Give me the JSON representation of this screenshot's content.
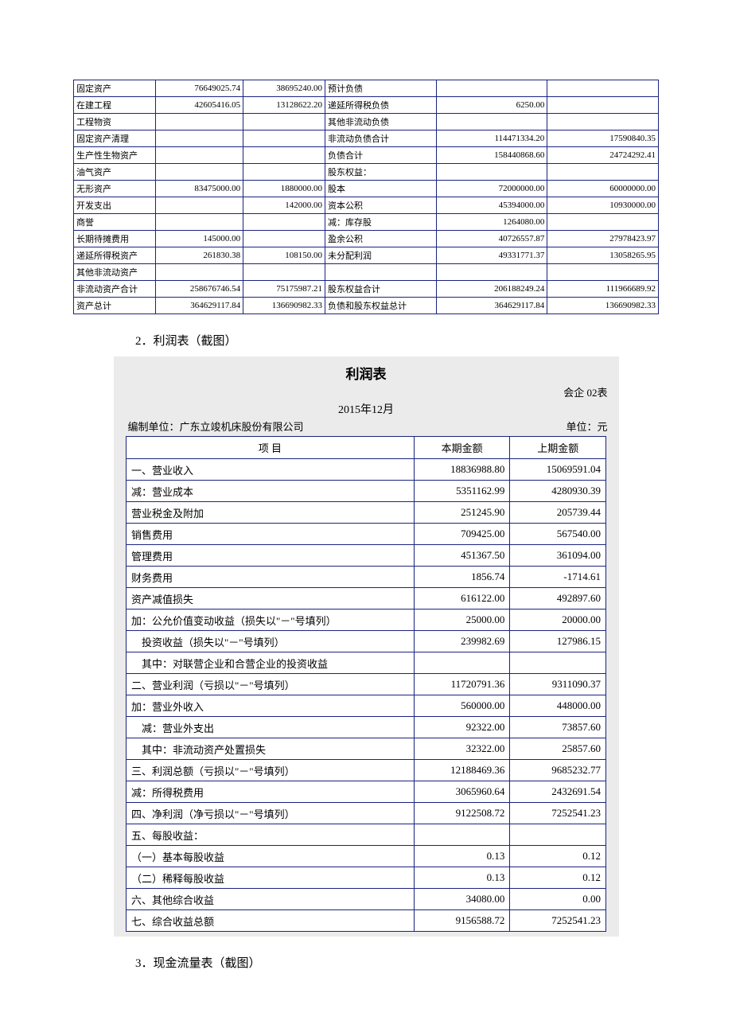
{
  "balance": {
    "rows": [
      {
        "l_label": "固定资产",
        "l_v1": "76649025.74",
        "l_v2": "38695240.00",
        "r_label": "预计负债",
        "r_v1": "",
        "r_v2": ""
      },
      {
        "l_label": "在建工程",
        "l_v1": "42605416.05",
        "l_v2": "13128622.20",
        "r_label": "递延所得税负债",
        "r_v1": "6250.00",
        "r_v2": ""
      },
      {
        "l_label": "工程物资",
        "l_v1": "",
        "l_v2": "",
        "r_label": "其他非流动负债",
        "r_v1": "",
        "r_v2": ""
      },
      {
        "l_label": "固定资产清理",
        "l_v1": "",
        "l_v2": "",
        "r_label": "非流动负债合计",
        "r_v1": "114471334.20",
        "r_v2": "17590840.35"
      },
      {
        "l_label": "生产性生物资产",
        "l_v1": "",
        "l_v2": "",
        "r_label": "负债合计",
        "r_v1": "158440868.60",
        "r_v2": "24724292.41"
      },
      {
        "l_label": "油气资产",
        "l_v1": "",
        "l_v2": "",
        "r_label": "股东权益：",
        "r_v1": "",
        "r_v2": ""
      },
      {
        "l_label": "无形资产",
        "l_v1": "83475000.00",
        "l_v2": "1880000.00",
        "r_label": "股本",
        "r_v1": "72000000.00",
        "r_v2": "60000000.00"
      },
      {
        "l_label": "开发支出",
        "l_v1": "",
        "l_v2": "142000.00",
        "r_label": "资本公积",
        "r_v1": "45394000.00",
        "r_v2": "10930000.00"
      },
      {
        "l_label": "商誉",
        "l_v1": "",
        "l_v2": "",
        "r_label": "减：库存股",
        "r_v1": "1264080.00",
        "r_v2": ""
      },
      {
        "l_label": "长期待摊费用",
        "l_v1": "145000.00",
        "l_v2": "",
        "r_label": "盈余公积",
        "r_v1": "40726557.87",
        "r_v2": "27978423.97"
      },
      {
        "l_label": "递延所得税资产",
        "l_v1": "261830.38",
        "l_v2": "108150.00",
        "r_label": "未分配利润",
        "r_v1": "49331771.37",
        "r_v2": "13058265.95"
      },
      {
        "l_label": "其他非流动资产",
        "l_v1": "",
        "l_v2": "",
        "r_label": "",
        "r_v1": "",
        "r_v2": ""
      },
      {
        "l_label": "非流动资产合计",
        "l_v1": "258676746.54",
        "l_v2": "75175987.21",
        "r_label": "股东权益合计",
        "r_v1": "206188249.24",
        "r_v2": "111966689.92"
      },
      {
        "l_label": "资产总计",
        "l_v1": "364629117.84",
        "l_v2": "136690982.33",
        "r_label": "负债和股东权益总计",
        "r_v1": "364629117.84",
        "r_v2": "136690982.33"
      }
    ],
    "col_widths": {
      "c1": "14%",
      "c2": "15%",
      "c3": "14%",
      "c4": "19%",
      "c5": "19%",
      "c6": "19%"
    }
  },
  "captions": {
    "income": "2．利润表（截图）",
    "cashflow": "3．现金流量表（截图）"
  },
  "income": {
    "title": "利润表",
    "form_code": "会企 02表",
    "period": "2015年12月",
    "compiler": "编制单位：广东立竣机床股份有限公司",
    "unit": "单位：元",
    "header": {
      "item": "项 目",
      "cur": "本期金额",
      "prev": "上期金额"
    },
    "col_widths": {
      "c1": "60%",
      "c2": "20%",
      "c3": "20%"
    },
    "rows": [
      {
        "label": "一、营业收入",
        "cur": "18836988.80",
        "prev": "15069591.04"
      },
      {
        "label": "减：营业成本",
        "cur": "5351162.99",
        "prev": "4280930.39"
      },
      {
        "label": "营业税金及附加",
        "cur": "251245.90",
        "prev": "205739.44"
      },
      {
        "label": "销售费用",
        "cur": "709425.00",
        "prev": "567540.00"
      },
      {
        "label": "管理费用",
        "cur": "451367.50",
        "prev": "361094.00"
      },
      {
        "label": "财务费用",
        "cur": "1856.74",
        "prev": "-1714.61"
      },
      {
        "label": "资产减值损失",
        "cur": "616122.00",
        "prev": "492897.60"
      },
      {
        "label": "加：公允价值变动收益（损失以\"－\"号填列）",
        "cur": "25000.00",
        "prev": "20000.00"
      },
      {
        "label": "　投资收益（损失以\"－\"号填列）",
        "cur": "239982.69",
        "prev": "127986.15"
      },
      {
        "label": "　其中：对联营企业和合营企业的投资收益",
        "cur": "",
        "prev": ""
      },
      {
        "label": "二、营业利润（亏损以\"－\"号填列）",
        "cur": "11720791.36",
        "prev": "9311090.37"
      },
      {
        "label": "加：营业外收入",
        "cur": "560000.00",
        "prev": "448000.00"
      },
      {
        "label": "　减：营业外支出",
        "cur": "92322.00",
        "prev": "73857.60"
      },
      {
        "label": "　其中：非流动资产处置损失",
        "cur": "32322.00",
        "prev": "25857.60"
      },
      {
        "label": "三、利润总额（亏损以\"－\"号填列）",
        "cur": "12188469.36",
        "prev": "9685232.77"
      },
      {
        "label": "减：所得税费用",
        "cur": "3065960.64",
        "prev": "2432691.54"
      },
      {
        "label": "四、净利润（净亏损以\"－\"号填列）",
        "cur": "9122508.72",
        "prev": "7252541.23"
      },
      {
        "label": "五、每股收益：",
        "cur": "",
        "prev": ""
      },
      {
        "label": "（一）基本每股收益",
        "cur": "0.13",
        "prev": "0.12"
      },
      {
        "label": "（二）稀释每股收益",
        "cur": "0.13",
        "prev": "0.12"
      },
      {
        "label": "六、其他综合收益",
        "cur": "34080.00",
        "prev": "0.00"
      },
      {
        "label": "七、综合收益总额",
        "cur": "9156588.72",
        "prev": "7252541.23"
      }
    ]
  }
}
